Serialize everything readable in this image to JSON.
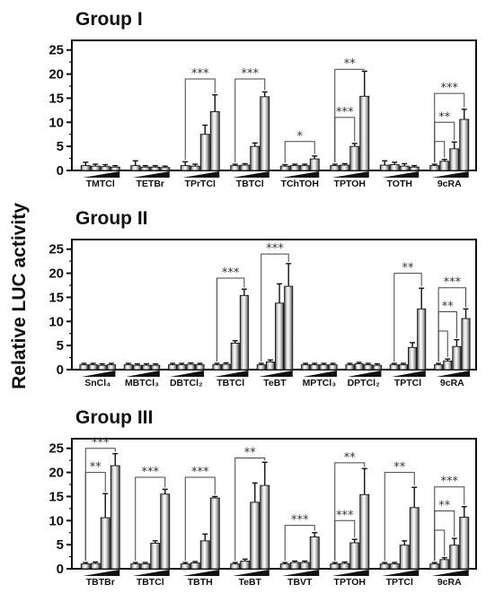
{
  "ylabel": "Relative LUC activity",
  "chart_data": [
    {
      "type": "bar",
      "title": "Group I",
      "ylabel": "Relative LUC activity",
      "ylim": [
        0,
        27
      ],
      "yticks": [
        0,
        5,
        10,
        15,
        20,
        25
      ],
      "grid": false,
      "categories": [
        "TMTCl",
        "TETBr",
        "TPrTCl",
        "TBTCl",
        "TChTOH",
        "TPTOH",
        "TOTH",
        "9cRA"
      ],
      "bars_per_category": 4,
      "values": [
        [
          1.0,
          0.9,
          0.8,
          0.7
        ],
        [
          1.0,
          0.7,
          0.7,
          0.6
        ],
        [
          1.0,
          0.9,
          7.5,
          12.2
        ],
        [
          1.0,
          1.1,
          5.0,
          15.3
        ],
        [
          0.9,
          1.0,
          1.0,
          2.4
        ],
        [
          1.0,
          1.1,
          5.0,
          15.4
        ],
        [
          1.1,
          1.2,
          0.9,
          0.7
        ],
        [
          1.0,
          1.9,
          4.5,
          10.6
        ]
      ],
      "errors": [
        [
          0.7,
          0.4,
          0.4,
          0.3
        ],
        [
          1.0,
          0.3,
          0.3,
          0.3
        ],
        [
          0.8,
          0.4,
          1.9,
          3.5
        ],
        [
          0.3,
          0.3,
          0.7,
          1.0
        ],
        [
          0.3,
          0.3,
          0.3,
          0.6
        ],
        [
          0.3,
          0.3,
          0.6,
          5.2
        ],
        [
          0.9,
          0.5,
          0.5,
          0.3
        ],
        [
          0.3,
          0.4,
          1.4,
          2.1
        ]
      ],
      "significance": [
        {
          "category": "TPrTCl",
          "from_bar": 1,
          "to_bar": 4,
          "label": "***",
          "y": 19
        },
        {
          "category": "TBTCl",
          "from_bar": 1,
          "to_bar": 4,
          "label": "***",
          "y": 19
        },
        {
          "category": "TChTOH",
          "from_bar": 1,
          "to_bar": 4,
          "label": "*",
          "y": 6
        },
        {
          "category": "TPTOH",
          "from_bar": 1,
          "to_bar": 4,
          "label": "**",
          "y": 21
        },
        {
          "category": "TPTOH",
          "from_bar": 1,
          "to_bar": 3,
          "label": "***",
          "y": 11
        },
        {
          "category": "9cRA",
          "from_bar": 1,
          "to_bar": 4,
          "label": "***",
          "y": 16
        },
        {
          "category": "9cRA",
          "from_bar": 1,
          "to_bar": 3,
          "label": "**",
          "y": 10
        },
        {
          "category": "9cRA",
          "from_bar": 1,
          "to_bar": 2,
          "label": "",
          "y": 6
        }
      ]
    },
    {
      "type": "bar",
      "title": "Group II",
      "ylabel": "Relative LUC activity",
      "ylim": [
        0,
        27
      ],
      "yticks": [
        0,
        5,
        10,
        15,
        20,
        25
      ],
      "grid": false,
      "categories": [
        "SnCl₄",
        "MBTCl₃",
        "DBTCl₂",
        "TBTCl",
        "TeBT",
        "MPTCl₃",
        "DPTCl₂",
        "TPTCl",
        "9cRA"
      ],
      "bars_per_category": 4,
      "values": [
        [
          1.0,
          1.0,
          0.9,
          1.0
        ],
        [
          1.0,
          0.9,
          0.9,
          0.9
        ],
        [
          1.0,
          1.0,
          1.1,
          1.0
        ],
        [
          1.0,
          1.1,
          5.5,
          15.4
        ],
        [
          1.0,
          1.6,
          13.8,
          17.3
        ],
        [
          1.0,
          1.0,
          1.0,
          1.0
        ],
        [
          1.0,
          1.2,
          1.0,
          0.9
        ],
        [
          1.0,
          1.0,
          4.6,
          12.6
        ],
        [
          1.0,
          1.8,
          4.8,
          10.6
        ]
      ],
      "errors": [
        [
          0.3,
          0.3,
          0.3,
          0.3
        ],
        [
          0.3,
          0.3,
          0.3,
          0.3
        ],
        [
          0.3,
          0.3,
          0.3,
          0.3
        ],
        [
          0.3,
          0.3,
          0.5,
          1.3
        ],
        [
          0.3,
          0.4,
          4.0,
          4.7
        ],
        [
          0.3,
          0.3,
          0.3,
          0.3
        ],
        [
          0.3,
          0.3,
          0.3,
          0.3
        ],
        [
          0.3,
          0.3,
          1.0,
          4.3
        ],
        [
          0.3,
          0.4,
          1.4,
          2.0
        ]
      ],
      "significance": [
        {
          "category": "TBTCl",
          "from_bar": 1,
          "to_bar": 4,
          "label": "***",
          "y": 19
        },
        {
          "category": "TeBT",
          "from_bar": 1,
          "to_bar": 4,
          "label": "***",
          "y": 24
        },
        {
          "category": "TPTCl",
          "from_bar": 1,
          "to_bar": 4,
          "label": "**",
          "y": 20
        },
        {
          "category": "9cRA",
          "from_bar": 1,
          "to_bar": 4,
          "label": "***",
          "y": 17
        },
        {
          "category": "9cRA",
          "from_bar": 1,
          "to_bar": 3,
          "label": "**",
          "y": 12
        },
        {
          "category": "9cRA",
          "from_bar": 1,
          "to_bar": 2,
          "label": "",
          "y": 8
        }
      ]
    },
    {
      "type": "bar",
      "title": "Group III",
      "ylabel": "Relative LUC activity",
      "ylim": [
        0,
        27
      ],
      "yticks": [
        0,
        5,
        10,
        15,
        20,
        25
      ],
      "grid": false,
      "categories": [
        "TBTBr",
        "TBTCl",
        "TBTH",
        "TeBT",
        "TBVT",
        "TPTOH",
        "TPTCl",
        "9cRA"
      ],
      "bars_per_category": 4,
      "values": [
        [
          1.0,
          1.1,
          10.6,
          21.4
        ],
        [
          1.0,
          1.0,
          5.3,
          15.5
        ],
        [
          1.0,
          1.2,
          5.8,
          14.7
        ],
        [
          1.0,
          1.6,
          13.8,
          17.3
        ],
        [
          1.0,
          1.3,
          1.3,
          6.6
        ],
        [
          1.0,
          1.1,
          5.4,
          15.4
        ],
        [
          1.0,
          1.0,
          4.9,
          12.7
        ],
        [
          1.0,
          1.9,
          4.9,
          10.7
        ]
      ],
      "errors": [
        [
          0.3,
          0.3,
          5.0,
          2.5
        ],
        [
          0.3,
          0.3,
          0.5,
          1.0
        ],
        [
          0.3,
          0.3,
          1.4,
          0.3
        ],
        [
          0.3,
          0.4,
          4.0,
          4.8
        ],
        [
          0.3,
          0.3,
          0.3,
          0.9
        ],
        [
          0.3,
          0.3,
          0.7,
          5.4
        ],
        [
          0.3,
          0.3,
          0.9,
          4.2
        ],
        [
          0.3,
          0.4,
          1.4,
          2.2
        ]
      ],
      "significance": [
        {
          "category": "TBTBr",
          "from_bar": 1,
          "to_bar": 4,
          "label": "***",
          "y": 25
        },
        {
          "category": "TBTBr",
          "from_bar": 1,
          "to_bar": 3,
          "label": "**",
          "y": 20
        },
        {
          "category": "TBTCl",
          "from_bar": 1,
          "to_bar": 4,
          "label": "***",
          "y": 19
        },
        {
          "category": "TBTH",
          "from_bar": 1,
          "to_bar": 4,
          "label": "***",
          "y": 19
        },
        {
          "category": "TeBT",
          "from_bar": 1,
          "to_bar": 4,
          "label": "**",
          "y": 23
        },
        {
          "category": "TBVT",
          "from_bar": 1,
          "to_bar": 4,
          "label": "***",
          "y": 9
        },
        {
          "category": "TPTOH",
          "from_bar": 1,
          "to_bar": 4,
          "label": "**",
          "y": 22
        },
        {
          "category": "TPTOH",
          "from_bar": 1,
          "to_bar": 3,
          "label": "***",
          "y": 10
        },
        {
          "category": "TPTCl",
          "from_bar": 1,
          "to_bar": 4,
          "label": "**",
          "y": 20
        },
        {
          "category": "9cRA",
          "from_bar": 1,
          "to_bar": 4,
          "label": "***",
          "y": 17
        },
        {
          "category": "9cRA",
          "from_bar": 1,
          "to_bar": 3,
          "label": "**",
          "y": 12
        },
        {
          "category": "9cRA",
          "from_bar": 1,
          "to_bar": 2,
          "label": "",
          "y": 8
        }
      ]
    }
  ]
}
